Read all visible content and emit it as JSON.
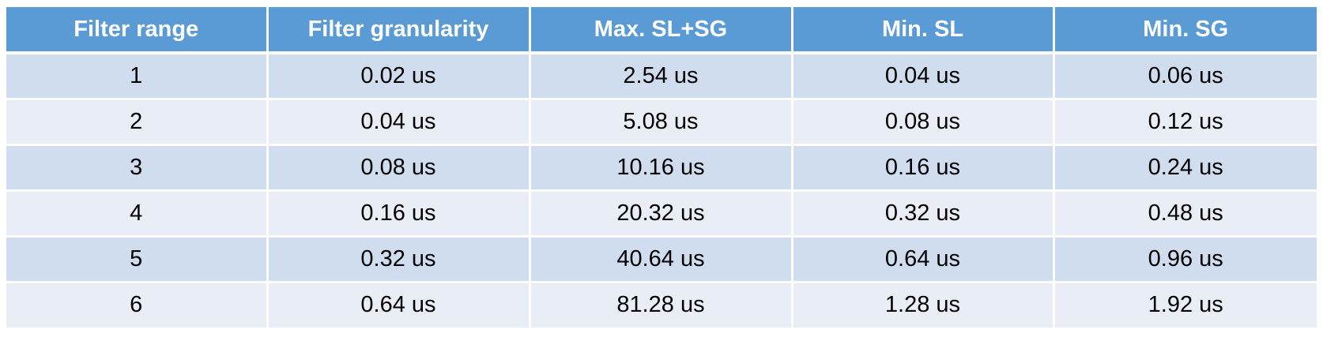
{
  "table": {
    "headers": [
      "Filter range",
      "Filter granularity",
      "Max. SL+SG",
      "Min. SL",
      "Min. SG"
    ],
    "rows": [
      [
        "1",
        "0.02 us",
        "2.54 us",
        "0.04 us",
        "0.06 us"
      ],
      [
        "2",
        "0.04 us",
        "5.08 us",
        "0.08 us",
        "0.12 us"
      ],
      [
        "3",
        "0.08 us",
        "10.16 us",
        "0.16 us",
        "0.24 us"
      ],
      [
        "4",
        "0.16 us",
        "20.32 us",
        "0.32 us",
        "0.48 us"
      ],
      [
        "5",
        "0.32 us",
        "40.64 us",
        "0.64 us",
        "0.96 us"
      ],
      [
        "6",
        "0.64 us",
        "81.28 us",
        "1.28 us",
        "1.92 us"
      ]
    ]
  },
  "colors": {
    "header_bg": "#5b9bd5",
    "row_odd_bg": "#d0ddee",
    "row_even_bg": "#e9eef6",
    "header_text": "#ffffff",
    "body_text": "#000000"
  }
}
